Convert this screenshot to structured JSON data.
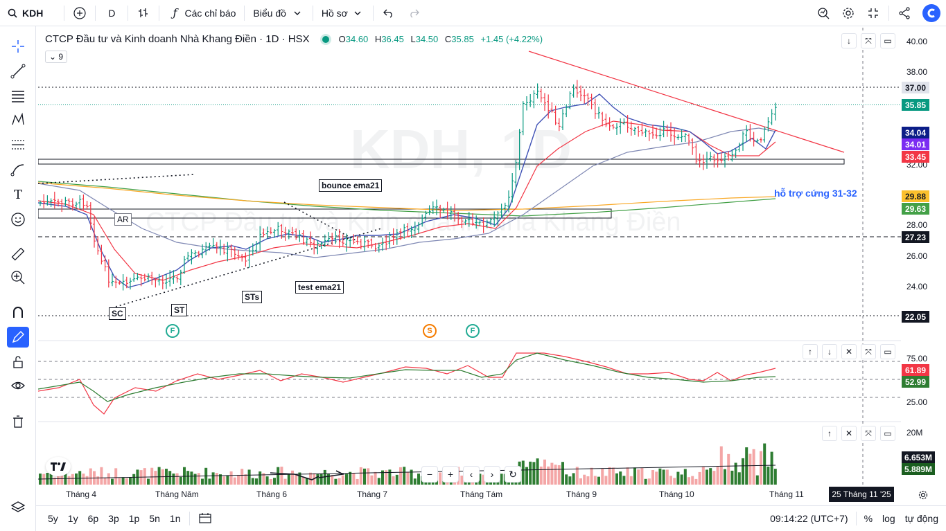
{
  "toolbar": {
    "symbol": "KDH",
    "interval": "D",
    "indicators_label": "Các chỉ báo",
    "chart_label": "Biểu đồ",
    "profile_label": "Hồ sơ"
  },
  "legend": {
    "title": "CTCP Đầu tư và Kinh doanh Nhà Khang Điền · 1D · HSX",
    "o_label": "O",
    "o_val": "34.60",
    "h_label": "H",
    "h_val": "36.45",
    "l_label": "L",
    "l_val": "34.50",
    "c_label": "C",
    "c_val": "35.85",
    "change": "+1.45 (+4.22%)",
    "indicator_count": "9"
  },
  "watermark": {
    "symbol": "KDH, 1D",
    "company": "CTCP Đầu tư và Kinh doanh Nhà Khang Điền"
  },
  "price_scale": {
    "labels": [
      "40.00",
      "38.00",
      "32.00",
      "28.00",
      "26.00",
      "24.00"
    ],
    "tags": [
      {
        "text": "37.00",
        "color": "#131722",
        "bg": "#e0e3eb"
      },
      {
        "text": "35.85",
        "color": "#ffffff",
        "bg": "#089981"
      },
      {
        "text": "34.04",
        "color": "#ffffff",
        "bg": "#0c1e88"
      },
      {
        "text": "34.01",
        "color": "#ffffff",
        "bg": "#7b2cf2"
      },
      {
        "text": "33.45",
        "color": "#ffffff",
        "bg": "#f23645"
      },
      {
        "text": "29.88",
        "color": "#131722",
        "bg": "#fbc02d"
      },
      {
        "text": "29.63",
        "color": "#ffffff",
        "bg": "#43a047"
      },
      {
        "text": "27.23",
        "color": "#ffffff",
        "bg": "#131722"
      },
      {
        "text": "22.05",
        "color": "#ffffff",
        "bg": "#131722"
      }
    ]
  },
  "rsi_scale": {
    "labels": [
      "75.00",
      "25.00"
    ],
    "tags": [
      {
        "text": "61.89",
        "color": "#ffffff",
        "bg": "#f23645"
      },
      {
        "text": "52.99",
        "color": "#ffffff",
        "bg": "#2e7d32"
      }
    ]
  },
  "volume_scale": {
    "label": "20M",
    "tags": [
      {
        "text": "6.653M",
        "color": "#ffffff",
        "bg": "#131722"
      },
      {
        "text": "5.889M",
        "color": "#ffffff",
        "bg": "#1b5e20"
      }
    ]
  },
  "annotations": {
    "ar": "AR",
    "sc": "SC",
    "st": "ST",
    "sts": "STs",
    "bounce": "bounce ema21",
    "test": "test ema21",
    "support": "hỗ trợ cứng 31-32",
    "f1": "F",
    "s1": "S",
    "f2": "F"
  },
  "time_axis": [
    "Tháng 4",
    "Tháng Năm",
    "Tháng 6",
    "Tháng 7",
    "Tháng Tám",
    "Tháng 9",
    "Tháng 10",
    "Tháng 11"
  ],
  "crosshair_date": "25 Tháng 11 '25",
  "bottom": {
    "ranges": [
      "5y",
      "1y",
      "6p",
      "3p",
      "1p",
      "5n",
      "1n"
    ],
    "clock": "09:14:22 (UTC+7)",
    "percent": "%",
    "log": "log",
    "auto": "tự động"
  },
  "colors": {
    "up": "#089981",
    "down": "#f23645",
    "trend": "#f23645",
    "ema_blue": "#3f51b5",
    "ema_red": "#f23645",
    "ema_gray": "#7e87b3",
    "ema_orange": "#f9a825",
    "ema_green": "#43a047",
    "support_text": "#2962ff"
  }
}
